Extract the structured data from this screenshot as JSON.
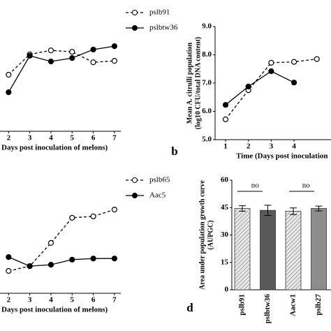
{
  "chart_data": [
    {
      "type": "line",
      "xlabel": "Days post inoculation of melons)",
      "x": [
        2,
        3,
        4,
        5,
        6,
        7
      ],
      "xlim": [
        1,
        7.3
      ],
      "xticks": [
        2,
        3,
        4,
        5,
        6,
        7
      ],
      "ylim": [
        5,
        9
      ],
      "series": [
        {
          "name": "pslb91",
          "color": "#000000",
          "dashed": true,
          "marker": "open",
          "values": [
            7.0,
            7.72,
            7.86,
            7.81,
            7.44,
            7.49
          ]
        },
        {
          "name": "pslbtw36",
          "color": "#000000",
          "dashed": false,
          "marker": "filled",
          "values": [
            6.38,
            7.67,
            7.47,
            7.59,
            7.89,
            8.01
          ]
        }
      ]
    },
    {
      "type": "line",
      "label": "b",
      "xlabel": "Time (Days post inoculation",
      "ylabel": [
        "Mean A. citrulli population",
        "(log10 CFU/total DNA content)"
      ],
      "x": [
        1,
        2,
        3,
        4,
        5
      ],
      "xlim": [
        0.54,
        5.62
      ],
      "xticks": [
        1,
        2,
        3,
        4
      ],
      "ylim": [
        5,
        9
      ],
      "yticks": [
        {
          "value": 5,
          "label": "5.0"
        },
        {
          "value": 6,
          "label": "6.0"
        },
        {
          "value": 7,
          "label": "7.0"
        },
        {
          "value": 8,
          "label": "8.0"
        },
        {
          "value": 9,
          "label": "9.0"
        }
      ],
      "series": [
        {
          "color": "#000000",
          "dashed": true,
          "marker": "open",
          "values": [
            5.72,
            6.75,
            7.72,
            7.75,
            7.85
          ]
        },
        {
          "color": "#000000",
          "dashed": false,
          "marker": "filled",
          "values": [
            6.23,
            6.88,
            7.42,
            7.02,
            null
          ]
        }
      ]
    },
    {
      "type": "line",
      "xlabel": "Days post inoculation of melons)",
      "x": [
        2,
        3,
        4,
        5,
        6,
        7
      ],
      "xlim": [
        1,
        7.3
      ],
      "xticks": [
        2,
        3,
        4,
        5,
        6,
        7
      ],
      "ylim": [
        5,
        9
      ],
      "series": [
        {
          "name": "pslb65",
          "color": "#000000",
          "dashed": true,
          "marker": "open",
          "values": [
            5.79,
            5.96,
            6.78,
            7.67,
            7.72,
            7.96
          ]
        },
        {
          "name": "Aac5",
          "color": "#000000",
          "dashed": false,
          "marker": "filled",
          "values": [
            6.28,
            5.96,
            6.01,
            6.19,
            6.23,
            6.23
          ]
        }
      ]
    },
    {
      "type": "bar",
      "label": "d",
      "ylabel": [
        "Area under population growth curve",
        "(AUPGC)"
      ],
      "categories": [
        "pslb91",
        "pslbtw36",
        "Aacw1",
        "pslb27"
      ],
      "values": [
        44.5,
        43.5,
        43,
        44.5
      ],
      "errors": [
        1.5,
        2.8,
        1.8,
        1.3
      ],
      "colors": [
        "#d9d9d9",
        "#595959",
        "#d9d9d9",
        "#8c8c8c"
      ],
      "hatched": [
        true,
        false,
        true,
        false
      ],
      "ylim": [
        0,
        60
      ],
      "yticks": [
        0,
        15,
        30,
        45,
        60
      ],
      "annotations": [
        "no",
        "no"
      ]
    }
  ]
}
